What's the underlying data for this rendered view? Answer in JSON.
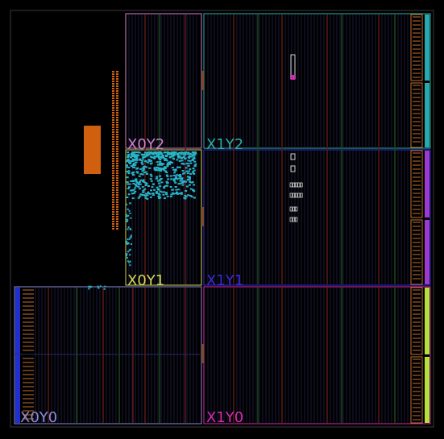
{
  "view": {
    "background": "#000000",
    "frame_color": "#3a3a3a"
  },
  "regions": [
    {
      "name": "X0Y2",
      "label": "X0Y2",
      "color": "#d27fd2"
    },
    {
      "name": "X1Y2",
      "label": "X1Y2",
      "color": "#2bb0a4"
    },
    {
      "name": "X0Y1",
      "label": "X0Y1",
      "color": "#d4d45a"
    },
    {
      "name": "X1Y1",
      "label": "X1Y1",
      "color": "#3a2bd6"
    },
    {
      "name": "X0Y0",
      "label": "X0Y0",
      "color": "#8c8cd9"
    },
    {
      "name": "X1Y0",
      "label": "X1Y0",
      "color": "#d42bb0"
    }
  ],
  "colors": {
    "column_red": "#5a1a1a",
    "column_green": "#1a4a1a",
    "column_dark": "#1a1a3a",
    "io_orange": "#c07030",
    "placed_cells": "#28b4c8",
    "block_orange": "#d06010",
    "strip_yellowgreen": "#b6e03a",
    "strip_teal": "#2aa8b0",
    "strip_purple": "#9a3ad0",
    "strip_blue": "#2030d0",
    "magenta_marker": "#e020c0"
  }
}
